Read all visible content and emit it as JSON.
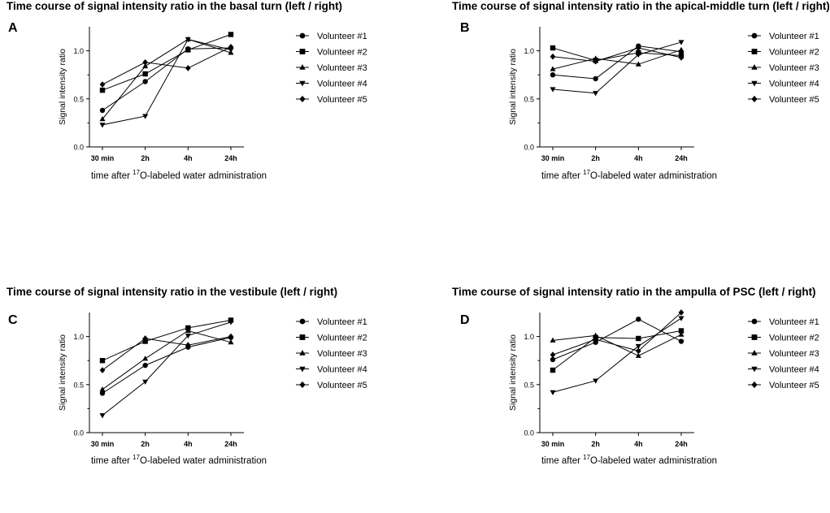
{
  "chart_data": [
    {
      "panel_label": "A",
      "type": "line",
      "title": "Time course of signal intensity ratio in the basal turn (left / right)",
      "categories": [
        "30 min",
        "2h",
        "4h",
        "24h"
      ],
      "ylabel": "Signal intensity ratio",
      "xlabel": {
        "prefix": "time after ",
        "superscript": "17",
        "suffix": "O-labeled water administration"
      },
      "ylim": [
        0,
        1.25
      ],
      "yticks": [
        "0.0",
        "0.5",
        "1.0"
      ],
      "series": [
        {
          "name": "Volunteer #1",
          "marker": "circle",
          "values": [
            0.38,
            0.68,
            1.02,
            1.03
          ]
        },
        {
          "name": "Volunteer #2",
          "marker": "square",
          "values": [
            0.59,
            0.76,
            1.01,
            1.17
          ]
        },
        {
          "name": "Volunteer #3",
          "marker": "triangle-up",
          "values": [
            0.29,
            0.84,
            1.12,
            0.98
          ]
        },
        {
          "name": "Volunteer #4",
          "marker": "triangle-down",
          "values": [
            0.23,
            0.32,
            1.12,
            1.01
          ]
        },
        {
          "name": "Volunteer #5",
          "marker": "diamond",
          "values": [
            0.65,
            0.88,
            0.82,
            1.04
          ]
        }
      ]
    },
    {
      "panel_label": "B",
      "type": "line",
      "title": "Time course of signal intensity ratio in the apical-middle turn (left / right)",
      "categories": [
        "30 min",
        "2h",
        "4h",
        "24h"
      ],
      "ylabel": "Signal intensity ratio",
      "xlabel": {
        "prefix": "time after ",
        "superscript": "17",
        "suffix": "O-labeled water administration"
      },
      "ylim": [
        0,
        1.25
      ],
      "yticks": [
        "0.0",
        "0.5",
        "1.0"
      ],
      "series": [
        {
          "name": "Volunteer #1",
          "marker": "circle",
          "values": [
            0.75,
            0.71,
            1.05,
            0.99
          ]
        },
        {
          "name": "Volunteer #2",
          "marker": "square",
          "values": [
            1.03,
            0.9,
            0.98,
            0.95
          ]
        },
        {
          "name": "Volunteer #3",
          "marker": "triangle-up",
          "values": [
            0.81,
            0.92,
            0.86,
            1.01
          ]
        },
        {
          "name": "Volunteer #4",
          "marker": "triangle-down",
          "values": [
            0.6,
            0.56,
            0.96,
            1.09
          ]
        },
        {
          "name": "Volunteer #5",
          "marker": "diamond",
          "values": [
            0.94,
            0.89,
            1.03,
            0.93
          ]
        }
      ]
    },
    {
      "panel_label": "C",
      "type": "line",
      "title": "Time course of signal intensity ratio in the vestibule (left / right)",
      "categories": [
        "30 min",
        "2h",
        "4h",
        "24h"
      ],
      "ylabel": "Signal intensity ratio",
      "xlabel": {
        "prefix": "time after ",
        "superscript": "17",
        "suffix": "O-labeled water administration"
      },
      "ylim": [
        0,
        1.25
      ],
      "yticks": [
        "0.0",
        "0.5",
        "1.0"
      ],
      "series": [
        {
          "name": "Volunteer #1",
          "marker": "circle",
          "values": [
            0.41,
            0.7,
            0.89,
            0.99
          ]
        },
        {
          "name": "Volunteer #2",
          "marker": "square",
          "values": [
            0.75,
            0.95,
            1.09,
            1.17
          ]
        },
        {
          "name": "Volunteer #3",
          "marker": "triangle-up",
          "values": [
            0.45,
            0.77,
            1.06,
            0.94
          ]
        },
        {
          "name": "Volunteer #4",
          "marker": "triangle-down",
          "values": [
            0.18,
            0.53,
            1.01,
            1.15
          ]
        },
        {
          "name": "Volunteer #5",
          "marker": "diamond",
          "values": [
            0.65,
            0.98,
            0.91,
            1.0
          ]
        }
      ]
    },
    {
      "panel_label": "D",
      "type": "line",
      "title": "Time course of signal intensity ratio in the ampulla of PSC (left / right)",
      "categories": [
        "30 min",
        "2h",
        "4h",
        "24h"
      ],
      "ylabel": "Signal intensity ratio",
      "xlabel": {
        "prefix": "time after ",
        "superscript": "17",
        "suffix": "O-labeled water administration"
      },
      "ylim": [
        0,
        1.25
      ],
      "yticks": [
        "0.0",
        "0.5",
        "1.0"
      ],
      "series": [
        {
          "name": "Volunteer #1",
          "marker": "circle",
          "values": [
            0.76,
            0.94,
            1.18,
            0.95
          ]
        },
        {
          "name": "Volunteer #2",
          "marker": "square",
          "values": [
            0.65,
            0.99,
            0.98,
            1.06
          ]
        },
        {
          "name": "Volunteer #3",
          "marker": "triangle-up",
          "values": [
            0.96,
            1.01,
            0.8,
            1.02
          ]
        },
        {
          "name": "Volunteer #4",
          "marker": "triangle-down",
          "values": [
            0.42,
            0.54,
            0.9,
            1.19
          ]
        },
        {
          "name": "Volunteer #5",
          "marker": "diamond",
          "values": [
            0.81,
            0.97,
            0.85,
            1.25
          ]
        }
      ]
    }
  ]
}
